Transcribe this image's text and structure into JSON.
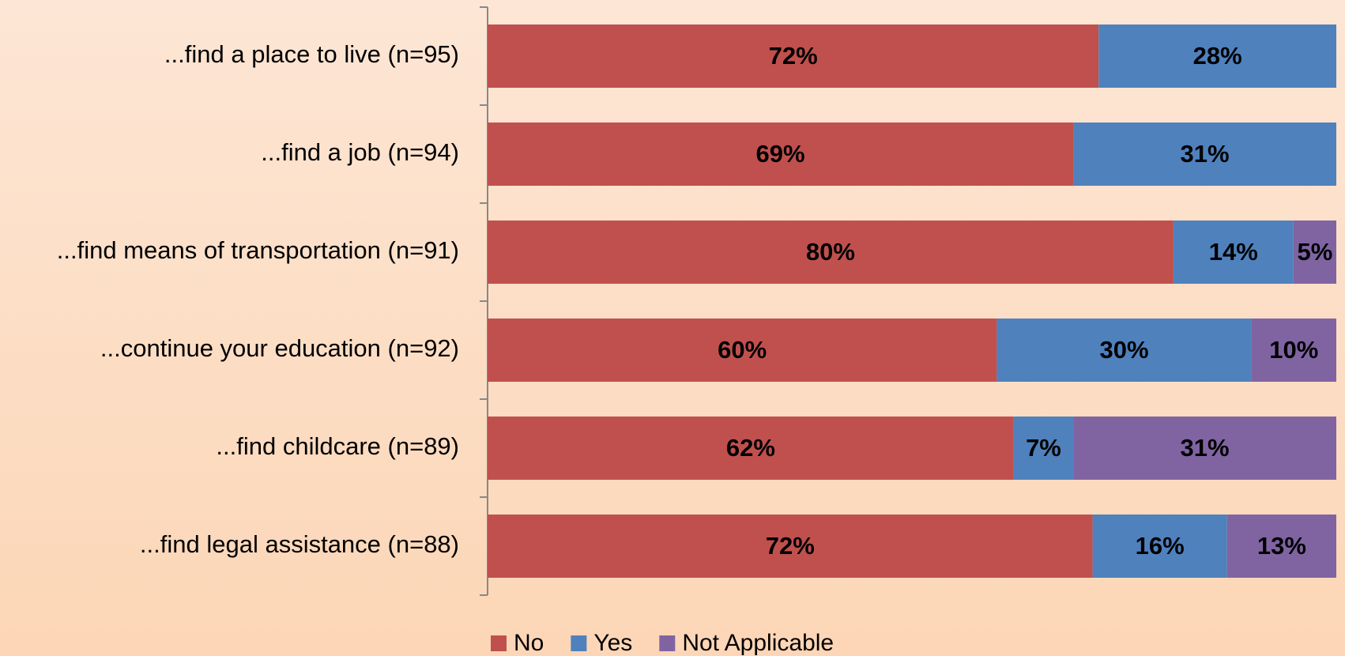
{
  "chart_data": {
    "type": "bar",
    "orientation": "horizontal",
    "stacking": "percent",
    "categories": [
      "...find a place to live (n=95)",
      "...find a job (n=94)",
      "...find means of transportation (n=91)",
      "...continue your education (n=92)",
      "...find childcare (n=89)",
      "...find legal assistance (n=88)"
    ],
    "series": [
      {
        "name": "No",
        "color": "#c0504d",
        "values": [
          72,
          69,
          80,
          60,
          62,
          72
        ],
        "value_labels": [
          "72%",
          "69%",
          "80%",
          "60%",
          "62%",
          "72%"
        ]
      },
      {
        "name": "Yes",
        "color": "#4f81bd",
        "values": [
          28,
          31,
          14,
          30,
          7,
          16
        ],
        "value_labels": [
          "28%",
          "31%",
          "14%",
          "30%",
          "7%",
          "16%"
        ]
      },
      {
        "name": "Not Applicable",
        "color": "#8064a2",
        "values": [
          null,
          null,
          5,
          10,
          31,
          13
        ],
        "value_labels": [
          null,
          null,
          "5%",
          "10%",
          "31%",
          "13%"
        ]
      }
    ],
    "legend": "bottom"
  }
}
